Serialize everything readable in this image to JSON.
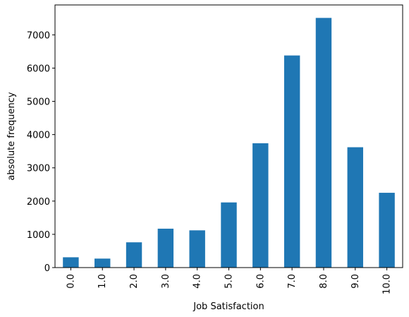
{
  "chart_data": {
    "type": "bar",
    "title": "",
    "xlabel": "Job Satisfaction",
    "ylabel": "absolute frequency",
    "categories": [
      "0.0",
      "1.0",
      "2.0",
      "3.0",
      "4.0",
      "5.0",
      "6.0",
      "7.0",
      "8.0",
      "9.0",
      "10.0"
    ],
    "values": [
      310,
      270,
      760,
      1170,
      1120,
      1960,
      3740,
      6380,
      7510,
      3620,
      2250
    ],
    "ylim": [
      0,
      7900
    ],
    "yticks": [
      0,
      1000,
      2000,
      3000,
      4000,
      5000,
      6000,
      7000
    ],
    "grid": false,
    "legend": "none",
    "bar_color": "#1f77b4"
  }
}
